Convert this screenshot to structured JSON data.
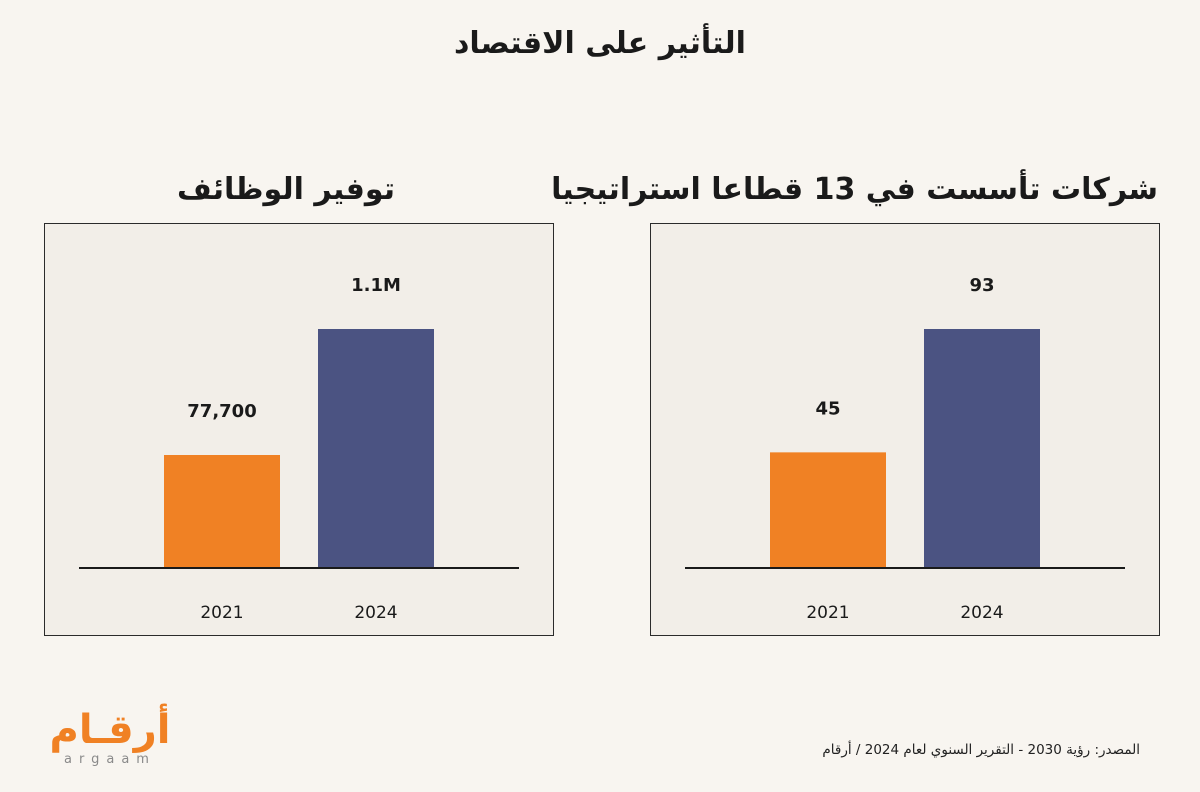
{
  "title": "التأثير على الاقتصاد",
  "colors": {
    "bar_2021": "#f08124",
    "bar_2024": "#4b5382",
    "logo": "#f08124"
  },
  "chart_data": [
    {
      "type": "bar",
      "title": "توفير الوظائف",
      "categories": [
        "2021",
        "2024"
      ],
      "values": [
        77700,
        1100000
      ],
      "data_labels": [
        "77,700",
        "1.1M"
      ]
    },
    {
      "type": "bar",
      "title": "شركات تأسست في 13 قطاعا استراتيجيا",
      "categories": [
        "2021",
        "2024"
      ],
      "values": [
        45,
        93
      ],
      "data_labels": [
        "45",
        "93"
      ]
    }
  ],
  "source": "المصدر: رؤية 2030 - التقرير السنوي لعام 2024 / أرقام",
  "logo": {
    "arabic": "أرقـام",
    "latin": "argaam"
  }
}
